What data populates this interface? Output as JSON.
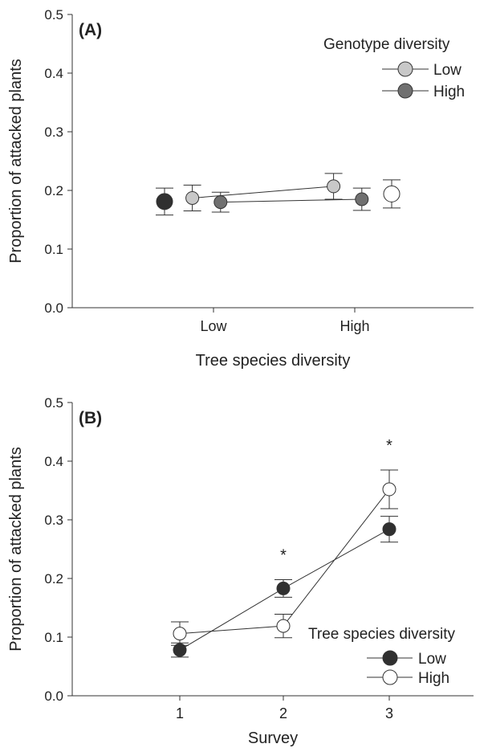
{
  "chart_data": [
    {
      "type": "scatter",
      "panel_label": "(A)",
      "xlabel": "Tree species diversity",
      "ylabel": "Proportion of attacked plants",
      "categories": [
        "Low",
        "High"
      ],
      "ylim": [
        0,
        0.5
      ],
      "yticks": [
        "0.0",
        "0.1",
        "0.2",
        "0.3",
        "0.4",
        "0.5"
      ],
      "grid": false,
      "legend": {
        "title": "Genotype diversity",
        "placement": "top-right",
        "entries": [
          {
            "label": "Low",
            "color": "#c8c8c8"
          },
          {
            "label": "High",
            "color": "#707070"
          }
        ]
      },
      "series": [
        {
          "name": "Low",
          "color": "#c8c8c8",
          "category_offset": -0.15,
          "values": [
            0.187,
            0.207
          ],
          "errors": [
            0.022,
            0.022
          ],
          "connected": true
        },
        {
          "name": "High",
          "color": "#707070",
          "category_offset": 0.05,
          "values": [
            0.18,
            0.185
          ],
          "errors": [
            0.017,
            0.019
          ],
          "connected": true
        }
      ],
      "marginal_means": [
        {
          "position": "left",
          "color": "#303030",
          "value": 0.181,
          "error": 0.023
        },
        {
          "position": "right",
          "color": "#ffffff",
          "value": 0.194,
          "error": 0.024
        }
      ]
    },
    {
      "type": "line",
      "panel_label": "(B)",
      "xlabel": "Survey",
      "ylabel": "Proportion of attacked plants",
      "categories": [
        "1",
        "2",
        "3"
      ],
      "ylim": [
        0,
        0.5
      ],
      "yticks": [
        "0.0",
        "0.1",
        "0.2",
        "0.3",
        "0.4",
        "0.5"
      ],
      "grid": false,
      "legend": {
        "title": "Tree species diversity",
        "placement": "bottom-right",
        "entries": [
          {
            "label": "Low",
            "color": "#303030"
          },
          {
            "label": "High",
            "color": "#ffffff"
          }
        ]
      },
      "series": [
        {
          "name": "Low",
          "color": "#303030",
          "values": [
            0.078,
            0.183,
            0.284
          ],
          "errors": [
            0.012,
            0.015,
            0.022
          ]
        },
        {
          "name": "High",
          "color": "#ffffff",
          "values": [
            0.106,
            0.119,
            0.352
          ],
          "errors": [
            0.02,
            0.02,
            0.033
          ]
        }
      ],
      "annotations": [
        {
          "text": "*",
          "category_index": 1
        },
        {
          "text": "*",
          "category_index": 2
        }
      ]
    }
  ]
}
